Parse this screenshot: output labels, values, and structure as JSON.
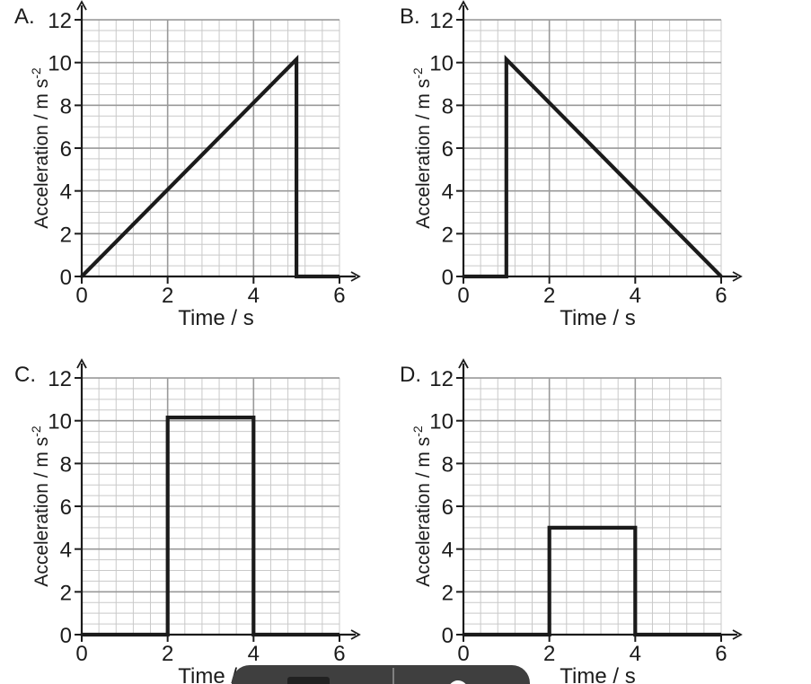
{
  "figure": {
    "background": "#ffffff",
    "text_color": "#1b1b1b",
    "axis_color": "#1b1b1b",
    "curve_color": "#1b1b1b",
    "grid_minor_color": "#c9c9c9",
    "grid_major_color": "#999999"
  },
  "chart_data": [
    {
      "id": "A",
      "panel_label": "A.",
      "type": "line",
      "xlabel": "Time / s",
      "ylabel": "Acceleration / m s⁻²",
      "ylabel_base": "Acceleration / m s",
      "ylabel_exponent": "-2",
      "xlim": [
        0,
        6
      ],
      "ylim": [
        0,
        12
      ],
      "xticks": [
        0,
        2,
        4,
        6
      ],
      "yticks": [
        0,
        2,
        4,
        6,
        8,
        10,
        12
      ],
      "x_minor_step": 0.4,
      "y_minor_step": 0.5,
      "x_major_step": 2,
      "y_major_step": 2,
      "grid": true,
      "legend": false,
      "series": [
        {
          "name": "acceleration-vs-time",
          "points": [
            [
              0,
              0
            ],
            [
              5,
              10.15
            ],
            [
              5,
              0
            ],
            [
              6,
              0
            ]
          ]
        }
      ]
    },
    {
      "id": "B",
      "panel_label": "B.",
      "type": "line",
      "xlabel": "Time / s",
      "ylabel": "Acceleration / m s⁻²",
      "ylabel_base": "Acceleration / m s",
      "ylabel_exponent": "-2",
      "xlim": [
        0,
        6
      ],
      "ylim": [
        0,
        12
      ],
      "xticks": [
        0,
        2,
        4,
        6
      ],
      "yticks": [
        0,
        2,
        4,
        6,
        8,
        10,
        12
      ],
      "x_minor_step": 0.4,
      "y_minor_step": 0.5,
      "x_major_step": 2,
      "y_major_step": 2,
      "grid": true,
      "legend": false,
      "series": [
        {
          "name": "acceleration-vs-time",
          "points": [
            [
              0,
              0
            ],
            [
              1,
              0
            ],
            [
              1,
              10.15
            ],
            [
              6,
              0
            ]
          ]
        }
      ]
    },
    {
      "id": "C",
      "panel_label": "C.",
      "type": "line",
      "xlabel": "Time / s",
      "ylabel": "Acceleration / m s⁻²",
      "ylabel_base": "Acceleration / m s",
      "ylabel_exponent": "-2",
      "xlim": [
        0,
        6
      ],
      "ylim": [
        0,
        12
      ],
      "xticks": [
        0,
        2,
        4,
        6
      ],
      "yticks": [
        0,
        2,
        4,
        6,
        8,
        10,
        12
      ],
      "x_minor_step": 0.4,
      "y_minor_step": 0.5,
      "x_major_step": 2,
      "y_major_step": 2,
      "grid": true,
      "legend": false,
      "series": [
        {
          "name": "acceleration-vs-time",
          "points": [
            [
              0,
              0
            ],
            [
              2,
              0
            ],
            [
              2,
              10.15
            ],
            [
              4,
              10.15
            ],
            [
              4,
              0
            ],
            [
              6,
              0
            ]
          ]
        }
      ]
    },
    {
      "id": "D",
      "panel_label": "D.",
      "type": "line",
      "xlabel": "Time / s",
      "ylabel": "Acceleration / m s⁻²",
      "ylabel_base": "Acceleration / m s",
      "ylabel_exponent": "-2",
      "xlim": [
        0,
        6
      ],
      "ylim": [
        0,
        12
      ],
      "xticks": [
        0,
        2,
        4,
        6
      ],
      "yticks": [
        0,
        2,
        4,
        6,
        8,
        10,
        12
      ],
      "x_minor_step": 0.4,
      "y_minor_step": 0.5,
      "x_major_step": 2,
      "y_major_step": 2,
      "grid": true,
      "legend": false,
      "series": [
        {
          "name": "acceleration-vs-time",
          "points": [
            [
              0,
              0
            ],
            [
              2,
              0
            ],
            [
              2,
              5
            ],
            [
              4,
              5
            ],
            [
              4,
              0
            ],
            [
              6,
              0
            ]
          ]
        }
      ]
    }
  ],
  "overlay_toolbar": {
    "background": "#3f3f3f",
    "divider_color": "#808080",
    "dark_button_color": "#212121",
    "record_button_color": "#fbfbfb"
  }
}
